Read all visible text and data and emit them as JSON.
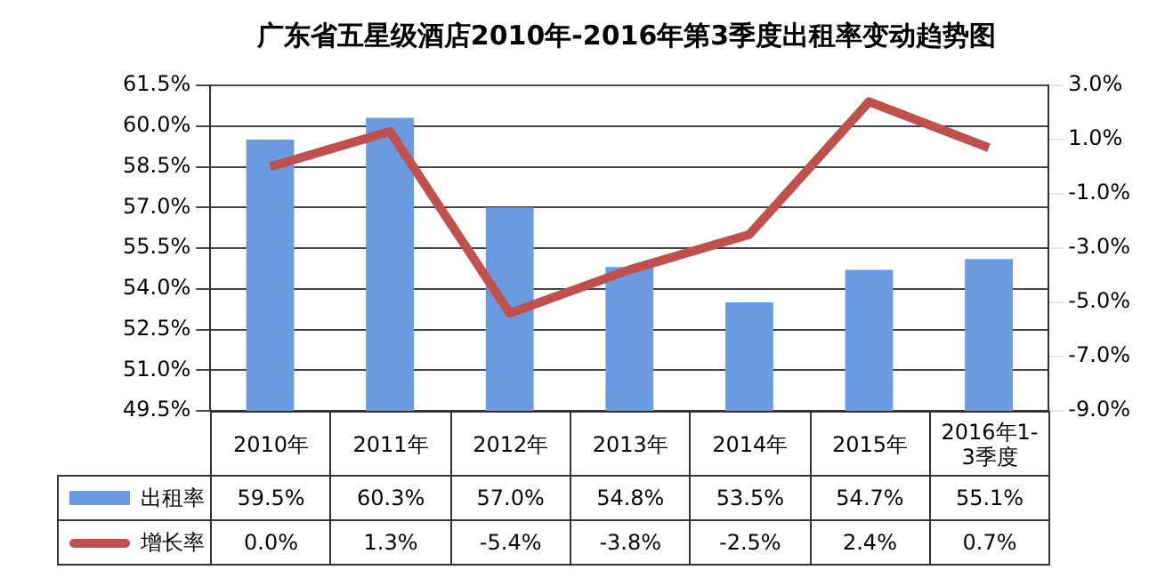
{
  "chart_data": {
    "type": "bar",
    "title": "广东省五星级酒店2010年-2016年第3季度出租率变动趋势图",
    "categories": [
      "2010年",
      "2011年",
      "2012年",
      "2013年",
      "2014年",
      "2015年",
      "2016年1-3季度"
    ],
    "series": [
      {
        "name": "出租率",
        "type": "bar",
        "color": "#6a9be0",
        "values": [
          59.5,
          60.3,
          57.0,
          54.8,
          53.5,
          54.7,
          55.1
        ],
        "value_labels": [
          "59.5%",
          "60.3%",
          "57.0%",
          "54.8%",
          "53.5%",
          "54.7%",
          "55.1%"
        ]
      },
      {
        "name": "增长率",
        "type": "line",
        "axis": "y2",
        "color": "#c0504d",
        "values": [
          0.0,
          1.3,
          -5.4,
          -3.8,
          -2.5,
          2.4,
          0.7
        ],
        "value_labels": [
          "0.0%",
          "1.3%",
          "-5.4%",
          "-3.8%",
          "-2.5%",
          "2.4%",
          "0.7%"
        ]
      }
    ],
    "ylim": [
      49.5,
      61.5
    ],
    "yticks": [
      {
        "value": 49.5,
        "label": "49.5%"
      },
      {
        "value": 51.0,
        "label": "51.0%"
      },
      {
        "value": 52.5,
        "label": "52.5%"
      },
      {
        "value": 54.0,
        "label": "54.0%"
      },
      {
        "value": 55.5,
        "label": "55.5%"
      },
      {
        "value": 57.0,
        "label": "57.0%"
      },
      {
        "value": 58.5,
        "label": "58.5%"
      },
      {
        "value": 60.0,
        "label": "60.0%"
      },
      {
        "value": 61.5,
        "label": "61.5%"
      }
    ],
    "y2lim": [
      -9.0,
      3.0
    ],
    "y2ticks": [
      {
        "value": -9.0,
        "label": "-9.0%"
      },
      {
        "value": -7.0,
        "label": "-7.0%"
      },
      {
        "value": -5.0,
        "label": "-5.0%"
      },
      {
        "value": -3.0,
        "label": "-3.0%"
      },
      {
        "value": -1.0,
        "label": "-1.0%"
      },
      {
        "value": 1.0,
        "label": "1.0%"
      },
      {
        "value": 3.0,
        "label": "3.0%"
      }
    ],
    "grid": "y",
    "legend": "bottom",
    "marker": "none",
    "line_style": "solid"
  }
}
